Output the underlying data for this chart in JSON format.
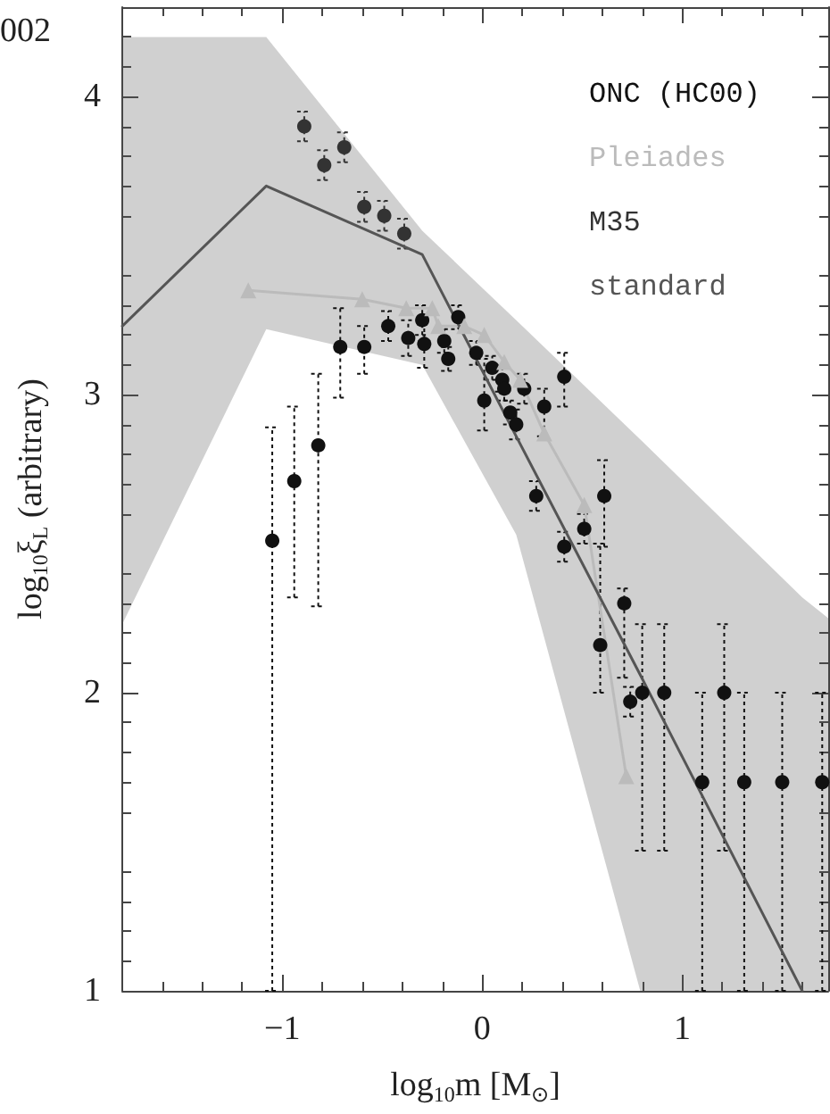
{
  "chart_data": {
    "type": "scatter",
    "xlabel": "log$_{10}$m [M$_{⊙}$]",
    "ylabel": "log$_{10}$ξ$_{L}$ (arbitrary)",
    "annotations": [
      "002"
    ],
    "xlim": [
      -1.8,
      1.73
    ],
    "xticks": [
      {
        "value": -1,
        "label": "−1"
      },
      0,
      1
    ],
    "ylim": [
      1,
      4.3
    ],
    "yticks": [
      1,
      2,
      3,
      4
    ],
    "legend": "top right",
    "grid": false,
    "series": [
      {
        "name": "ONC (HC00)",
        "color": "#111111",
        "marker": "circle",
        "x": [
          -1.05,
          -0.94,
          -0.82,
          -0.71,
          -0.59,
          -0.47,
          -0.37,
          -0.3,
          -0.29,
          -0.19,
          -0.17,
          -0.12,
          -0.09,
          -0.03,
          0.01,
          0.05,
          0.1,
          0.11,
          0.14,
          0.17,
          0.21,
          0.27,
          0.31,
          0.41,
          0.41,
          0.51,
          0.59,
          0.61,
          0.71,
          0.74,
          0.8,
          0.91,
          1.1,
          1.21,
          1.31,
          1.5,
          1.7
        ],
        "values": [
          2.51,
          2.71,
          2.83,
          3.16,
          3.16,
          3.23,
          3.19,
          3.25,
          3.17,
          3.18,
          3.12,
          3.26,
          null,
          3.14,
          2.98,
          3.09,
          3.05,
          3.02,
          2.94,
          2.9,
          3.02,
          2.66,
          2.96,
          3.06,
          2.49,
          2.55,
          2.16,
          2.66,
          2.3,
          1.97,
          2.0,
          2.0,
          1.7,
          2.0,
          1.7,
          1.7,
          1.7
        ],
        "errors": [
          [
            1.0,
            2.89
          ],
          [
            2.32,
            2.96
          ],
          [
            2.29,
            3.07
          ],
          [
            2.99,
            3.29
          ],
          [
            3.07,
            3.23
          ],
          0.05,
          0.06,
          0.05,
          0.08,
          0.04,
          0.04,
          0.04,
          null,
          0.04,
          [
            2.88,
            3.12
          ],
          0.04,
          0.04,
          0.04,
          0.04,
          0.05,
          0.05,
          0.05,
          [
            2.86,
            3.02
          ],
          [
            2.96,
            3.14
          ],
          0.05,
          0.05,
          [
            2.0,
            2.5
          ],
          [
            2.49,
            2.78
          ],
          [
            2.05,
            2.35
          ],
          0.05,
          [
            1.47,
            2.23
          ],
          [
            1.47,
            2.23
          ],
          [
            1.0,
            2.0
          ],
          [
            1.47,
            2.23
          ],
          [
            1.0,
            2.0
          ],
          [
            1.0,
            2.0
          ],
          [
            1.0,
            2.0
          ]
        ]
      },
      {
        "name": "Pleiades",
        "color": "#bbbbbb",
        "type": "line",
        "marker": "triangle",
        "x": [
          -1.17,
          -0.6,
          -0.38,
          -0.25,
          -0.22,
          -0.09,
          0.01,
          0.11,
          0.19,
          0.31,
          0.51,
          0.72
        ],
        "values": [
          3.35,
          3.32,
          3.29,
          3.29,
          3.23,
          3.23,
          3.2,
          3.11,
          3.05,
          2.87,
          2.63,
          1.72
        ]
      },
      {
        "name": "M35",
        "color": "#333333",
        "marker": "circle",
        "x": [
          -0.89,
          -0.79,
          -0.69,
          -0.59,
          -0.49,
          -0.39
        ],
        "values": [
          3.9,
          3.77,
          3.83,
          3.63,
          3.6,
          3.54
        ],
        "errors": [
          0.05,
          0.05,
          0.05,
          0.05,
          0.05,
          0.05
        ]
      },
      {
        "name": "standard",
        "color": "#555555",
        "type": "line",
        "marker": "none",
        "x": [
          -1.8,
          -1.08,
          -0.3,
          0.17,
          0.79,
          1.6,
          1.73
        ],
        "values": [
          3.23,
          3.7,
          3.47,
          2.86,
          2.06,
          1.0,
          null
        ],
        "lower": [
          2.23,
          3.22,
          3.1,
          2.53,
          1.0,
          1.0,
          1.0
        ],
        "upper": [
          4.2,
          4.2,
          3.55,
          3.25,
          2.85,
          2.32,
          2.25
        ]
      }
    ]
  }
}
